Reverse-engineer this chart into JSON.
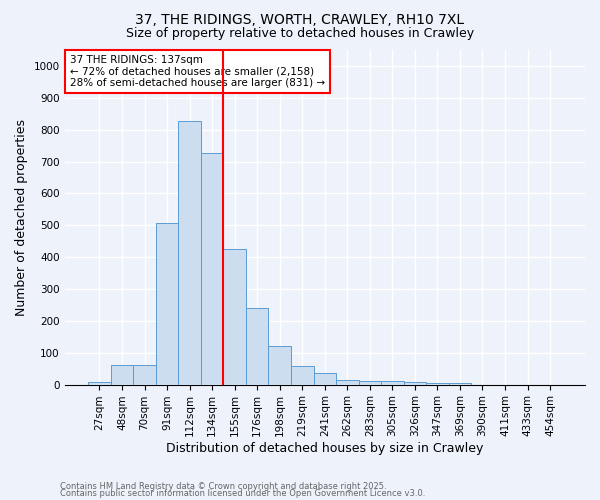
{
  "title1": "37, THE RIDINGS, WORTH, CRAWLEY, RH10 7XL",
  "title2": "Size of property relative to detached houses in Crawley",
  "xlabel": "Distribution of detached houses by size in Crawley",
  "ylabel": "Number of detached properties",
  "categories": [
    "27sqm",
    "48sqm",
    "70sqm",
    "91sqm",
    "112sqm",
    "134sqm",
    "155sqm",
    "176sqm",
    "198sqm",
    "219sqm",
    "241sqm",
    "262sqm",
    "283sqm",
    "305sqm",
    "326sqm",
    "347sqm",
    "369sqm",
    "390sqm",
    "411sqm",
    "433sqm",
    "454sqm"
  ],
  "values": [
    8,
    60,
    60,
    507,
    828,
    727,
    425,
    240,
    120,
    57,
    35,
    15,
    12,
    12,
    7,
    5,
    5,
    0,
    0,
    0,
    0
  ],
  "bar_color": "#ccddf0",
  "bar_edge_color": "#5b9bd5",
  "vline_x": 5.5,
  "vline_color": "red",
  "annotation_text": "37 THE RIDINGS: 137sqm\n← 72% of detached houses are smaller (2,158)\n28% of semi-detached houses are larger (831) →",
  "ylim": [
    0,
    1050
  ],
  "yticks": [
    0,
    100,
    200,
    300,
    400,
    500,
    600,
    700,
    800,
    900,
    1000
  ],
  "footer1": "Contains HM Land Registry data © Crown copyright and database right 2025.",
  "footer2": "Contains public sector information licensed under the Open Government Licence v3.0.",
  "bg_color": "#eef2fb",
  "grid_color": "#ffffff",
  "title1_fontsize": 10,
  "title2_fontsize": 9,
  "axis_label_fontsize": 9,
  "tick_fontsize": 7.5,
  "footer_fontsize": 6,
  "annotation_fontsize": 7.5
}
